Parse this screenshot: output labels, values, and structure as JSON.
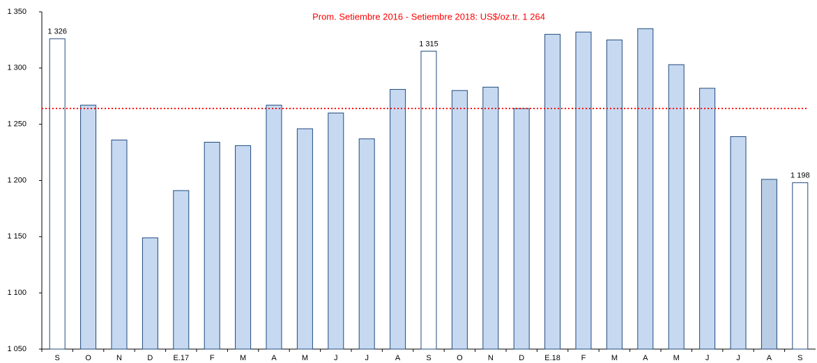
{
  "chart_data": {
    "type": "bar",
    "annotation": "Prom. Setiembre 2016 - Setiembre 2018: US$/oz.tr. 1 264",
    "annotation_color": "#ff0000",
    "reference_line": 1264,
    "categories": [
      "S",
      "O",
      "N",
      "D",
      "E.17",
      "F",
      "M",
      "A",
      "M",
      "J",
      "J",
      "A",
      "S",
      "O",
      "N",
      "D",
      "E.18",
      "F",
      "M",
      "A",
      "M",
      "J",
      "J",
      "A",
      "S"
    ],
    "values": [
      1326,
      1267,
      1236,
      1149,
      1191,
      1234,
      1231,
      1267,
      1246,
      1260,
      1237,
      1281,
      1315,
      1280,
      1283,
      1264,
      1330,
      1332,
      1325,
      1335,
      1303,
      1282,
      1239,
      1201,
      1198
    ],
    "value_labels": [
      "1 326",
      null,
      null,
      null,
      null,
      null,
      null,
      null,
      null,
      null,
      null,
      null,
      "1 315",
      null,
      null,
      null,
      null,
      null,
      null,
      null,
      null,
      null,
      null,
      null,
      "1 198"
    ],
    "colors": [
      "#ffffff",
      "#c6d9f1",
      "#c6d9f1",
      "#c6d9f1",
      "#c6d9f1",
      "#c6d9f1",
      "#c6d9f1",
      "#c6d9f1",
      "#c6d9f1",
      "#c6d9f1",
      "#c6d9f1",
      "#c6d9f1",
      "#ffffff",
      "#c6d9f1",
      "#c6d9f1",
      "#c6d9f1",
      "#c6d9f1",
      "#c6d9f1",
      "#c6d9f1",
      "#c6d9f1",
      "#c6d9f1",
      "#c6d9f1",
      "#c6d9f1",
      "#b9cde5",
      "#ffffff"
    ],
    "ylim": [
      1050,
      1350
    ],
    "yticks": [
      {
        "value": 1050,
        "label": "1 050"
      },
      {
        "value": 1100,
        "label": "1 100"
      },
      {
        "value": 1150,
        "label": "1 150"
      },
      {
        "value": 1200,
        "label": "1 200"
      },
      {
        "value": 1250,
        "label": "1 250"
      },
      {
        "value": 1300,
        "label": "1 300"
      },
      {
        "value": 1350,
        "label": "1 350"
      }
    ]
  }
}
